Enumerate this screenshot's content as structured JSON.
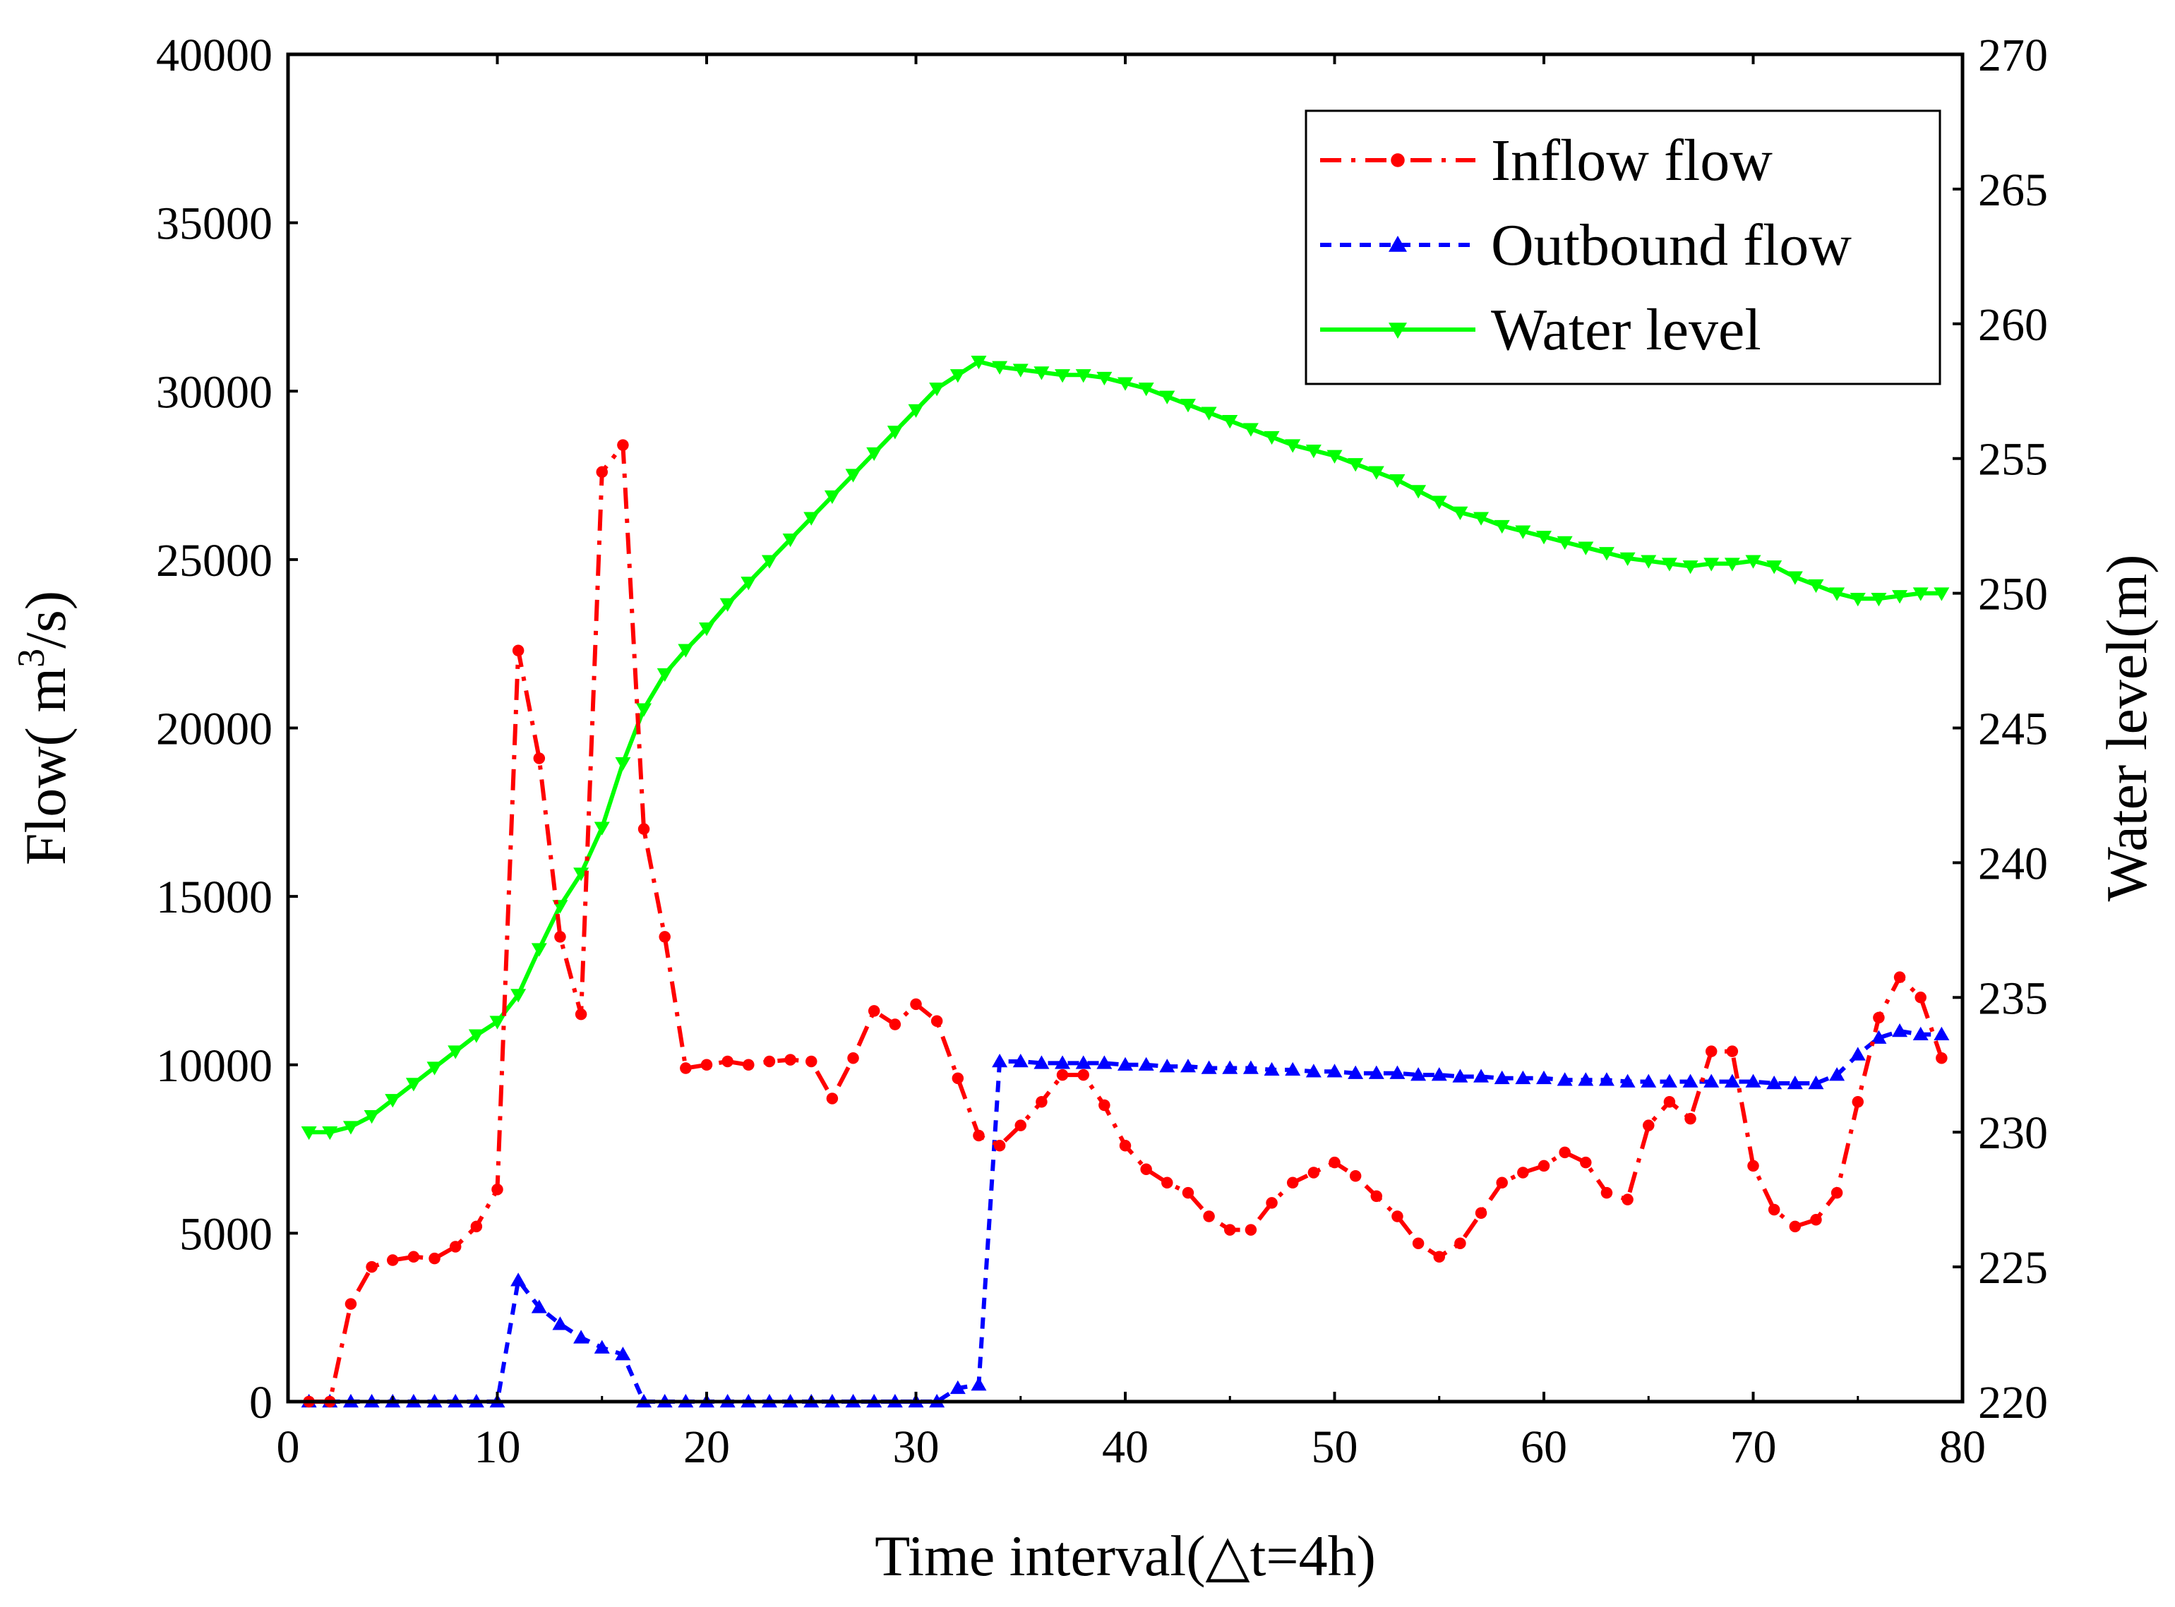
{
  "chart_data": {
    "type": "line",
    "xlabel": "Time interval(△t=4h)",
    "ylabel_left_prefix": "Flow( m",
    "ylabel_left_sup": "3",
    "ylabel_left_suffix": "/s)",
    "ylabel_right": "Water level(m)",
    "xlim": [
      0,
      80
    ],
    "ylim_left": [
      0,
      40000
    ],
    "ylim_right": [
      220,
      270
    ],
    "x_ticks": [
      0,
      10,
      20,
      30,
      40,
      50,
      60,
      70,
      80
    ],
    "y_ticks_left": [
      0,
      5000,
      10000,
      15000,
      20000,
      25000,
      30000,
      35000,
      40000
    ],
    "y_ticks_right": [
      220,
      225,
      230,
      235,
      240,
      245,
      250,
      255,
      260,
      265,
      270
    ],
    "grid": false,
    "legend_position": "top-right",
    "series": [
      {
        "name": "Inflow flow",
        "axis": "left",
        "color": "#ff0000",
        "line_style": "dash-dot",
        "marker": "circle",
        "x_start": 1,
        "values": [
          0,
          0,
          2900,
          4000,
          4200,
          4300,
          4250,
          4600,
          5200,
          6300,
          22300,
          19100,
          13800,
          11500,
          27600,
          28400,
          17000,
          13800,
          9900,
          10000,
          10100,
          10000,
          10100,
          10150,
          10100,
          9000,
          10200,
          11600,
          11200,
          11800,
          11300,
          9600,
          7900,
          7600,
          8200,
          8900,
          9700,
          9700,
          8800,
          7600,
          6900,
          6500,
          6200,
          5500,
          5100,
          5100,
          5900,
          6500,
          6800,
          7100,
          6700,
          6100,
          5500,
          4700,
          4300,
          4700,
          5600,
          6500,
          6800,
          7000,
          7400,
          7100,
          6200,
          6000,
          8200,
          8900,
          8400,
          10400,
          10400,
          7000,
          5700,
          5200,
          5400,
          6200,
          8900,
          11400,
          12600,
          12000,
          10200
        ]
      },
      {
        "name": "Outbound flow",
        "axis": "left",
        "color": "#0000ff",
        "line_style": "dashed",
        "marker": "triangle-up",
        "x_start": 1,
        "values": [
          0,
          0,
          0,
          0,
          0,
          0,
          0,
          0,
          0,
          0,
          3600,
          2800,
          2300,
          1900,
          1600,
          1400,
          0,
          0,
          0,
          0,
          0,
          0,
          0,
          0,
          0,
          0,
          0,
          0,
          0,
          0,
          0,
          400,
          500,
          10100,
          10100,
          10050,
          10050,
          10050,
          10050,
          10000,
          10000,
          9950,
          9950,
          9900,
          9900,
          9900,
          9850,
          9850,
          9800,
          9800,
          9750,
          9750,
          9750,
          9700,
          9700,
          9650,
          9650,
          9600,
          9600,
          9600,
          9550,
          9550,
          9550,
          9500,
          9500,
          9500,
          9500,
          9500,
          9500,
          9500,
          9450,
          9450,
          9450,
          9700,
          10300,
          10800,
          11000,
          10900,
          10900
        ]
      },
      {
        "name": "Water level",
        "axis": "right",
        "color": "#00ff00",
        "line_style": "solid",
        "marker": "triangle-down",
        "x_start": 1,
        "values": [
          230.0,
          230.0,
          230.2,
          230.6,
          231.2,
          231.8,
          232.4,
          233.0,
          233.6,
          234.1,
          235.1,
          236.8,
          238.4,
          239.6,
          241.3,
          243.7,
          245.7,
          247.0,
          247.9,
          248.7,
          249.6,
          250.4,
          251.2,
          252.0,
          252.8,
          253.6,
          254.4,
          255.2,
          256.0,
          256.8,
          257.6,
          258.1,
          258.6,
          258.4,
          258.3,
          258.2,
          258.1,
          258.1,
          258.0,
          257.8,
          257.6,
          257.3,
          257.0,
          256.7,
          256.4,
          256.1,
          255.8,
          255.5,
          255.3,
          255.1,
          254.8,
          254.5,
          254.2,
          253.8,
          253.4,
          253.0,
          252.8,
          252.5,
          252.3,
          252.1,
          251.9,
          251.7,
          251.5,
          251.3,
          251.2,
          251.1,
          251.0,
          251.1,
          251.1,
          251.2,
          251.0,
          250.6,
          250.3,
          250.0,
          249.8,
          249.8,
          249.9,
          250.0,
          250.0
        ]
      }
    ]
  }
}
